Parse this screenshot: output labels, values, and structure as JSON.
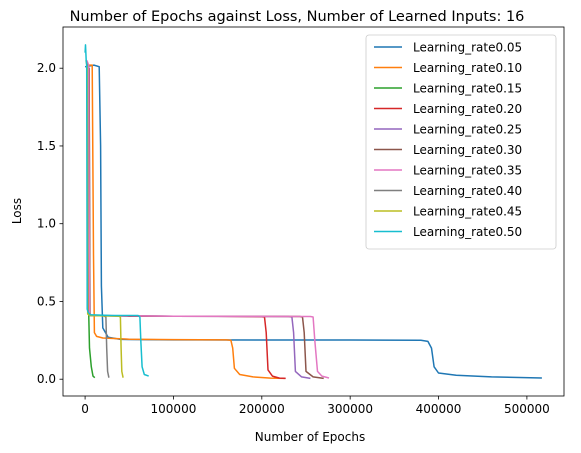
{
  "chart_data": {
    "type": "line",
    "title": "Number of Epochs against Loss, Number of Learned Inputs: 16",
    "xlabel": "Number of Epochs",
    "ylabel": "Loss",
    "xlim": [
      -25000,
      542000
    ],
    "ylim": [
      -0.108,
      2.265
    ],
    "xticks": [
      0,
      100000,
      200000,
      300000,
      400000,
      500000
    ],
    "xtick_labels": [
      "0",
      "100000",
      "200000",
      "300000",
      "400000",
      "500000"
    ],
    "yticks": [
      0.0,
      0.5,
      1.0,
      1.5,
      2.0
    ],
    "ytick_labels": [
      "0.0",
      "0.5",
      "1.0",
      "1.5",
      "2.0"
    ],
    "grid": false,
    "legend_position": "upper right",
    "series": [
      {
        "name": "Learning_rate0.05",
        "color": "#1f77b4",
        "points": [
          [
            0,
            2.01
          ],
          [
            10000,
            2.02
          ],
          [
            16000,
            2.01
          ],
          [
            17500,
            1.5
          ],
          [
            18500,
            0.6
          ],
          [
            20000,
            0.33
          ],
          [
            26000,
            0.27
          ],
          [
            40000,
            0.256
          ],
          [
            100000,
            0.253
          ],
          [
            200000,
            0.252
          ],
          [
            300000,
            0.252
          ],
          [
            380000,
            0.25
          ],
          [
            388000,
            0.243
          ],
          [
            392000,
            0.2
          ],
          [
            395000,
            0.08
          ],
          [
            400000,
            0.04
          ],
          [
            420000,
            0.025
          ],
          [
            460000,
            0.015
          ],
          [
            517000,
            0.008
          ]
        ]
      },
      {
        "name": "Learning_rate0.10",
        "color": "#ff7f0e",
        "points": [
          [
            3000,
            2.02
          ],
          [
            8000,
            2.02
          ],
          [
            9500,
            0.8
          ],
          [
            10500,
            0.3
          ],
          [
            13000,
            0.275
          ],
          [
            20000,
            0.265
          ],
          [
            50000,
            0.257
          ],
          [
            100000,
            0.255
          ],
          [
            160000,
            0.253
          ],
          [
            165000,
            0.25
          ],
          [
            167000,
            0.2
          ],
          [
            169000,
            0.07
          ],
          [
            175000,
            0.03
          ],
          [
            190000,
            0.015
          ],
          [
            210000,
            0.007
          ],
          [
            226000,
            0.005
          ]
        ]
      },
      {
        "name": "Learning_rate0.15",
        "color": "#2ca02c",
        "points": [
          [
            2000,
            2.02
          ],
          [
            3500,
            2.0
          ],
          [
            4200,
            0.4
          ],
          [
            5000,
            0.2
          ],
          [
            7000,
            0.08
          ],
          [
            9000,
            0.02
          ],
          [
            11000,
            0.01
          ]
        ]
      },
      {
        "name": "Learning_rate0.20",
        "color": "#d62728",
        "points": [
          [
            2500,
            2.02
          ],
          [
            4000,
            2.0
          ],
          [
            4800,
            0.42
          ],
          [
            6000,
            0.41
          ],
          [
            50000,
            0.405
          ],
          [
            100000,
            0.405
          ],
          [
            150000,
            0.405
          ],
          [
            200000,
            0.402
          ],
          [
            203000,
            0.4
          ],
          [
            205000,
            0.3
          ],
          [
            207000,
            0.06
          ],
          [
            212000,
            0.02
          ],
          [
            220000,
            0.007
          ],
          [
            227000,
            0.005
          ]
        ]
      },
      {
        "name": "Learning_rate0.25",
        "color": "#9467bd",
        "points": [
          [
            2500,
            2.0
          ],
          [
            4500,
            2.0
          ],
          [
            5500,
            0.42
          ],
          [
            7000,
            0.41
          ],
          [
            100000,
            0.405
          ],
          [
            230000,
            0.403
          ],
          [
            234000,
            0.4
          ],
          [
            236000,
            0.3
          ],
          [
            238000,
            0.05
          ],
          [
            245000,
            0.015
          ],
          [
            255000,
            0.005
          ]
        ]
      },
      {
        "name": "Learning_rate0.30",
        "color": "#8c564b",
        "points": [
          [
            2000,
            2.0
          ],
          [
            4500,
            2.0
          ],
          [
            5500,
            0.42
          ],
          [
            7000,
            0.41
          ],
          [
            100000,
            0.405
          ],
          [
            243000,
            0.403
          ],
          [
            246000,
            0.4
          ],
          [
            248000,
            0.3
          ],
          [
            250000,
            0.05
          ],
          [
            258000,
            0.015
          ],
          [
            270000,
            0.005
          ]
        ]
      },
      {
        "name": "Learning_rate0.35",
        "color": "#e377c2",
        "points": [
          [
            2000,
            2.05
          ],
          [
            4000,
            2.02
          ],
          [
            5000,
            0.42
          ],
          [
            7000,
            0.41
          ],
          [
            100000,
            0.405
          ],
          [
            255000,
            0.403
          ],
          [
            258000,
            0.4
          ],
          [
            260000,
            0.25
          ],
          [
            263000,
            0.05
          ],
          [
            268000,
            0.02
          ],
          [
            276000,
            0.008
          ]
        ]
      },
      {
        "name": "Learning_rate0.40",
        "color": "#7f7f7f",
        "points": [
          [
            1000,
            2.05
          ],
          [
            2500,
            2.02
          ],
          [
            3200,
            0.42
          ],
          [
            5000,
            0.41
          ],
          [
            20000,
            0.41
          ],
          [
            23500,
            0.4
          ],
          [
            24500,
            0.2
          ],
          [
            25500,
            0.05
          ],
          [
            27000,
            0.01
          ]
        ]
      },
      {
        "name": "Learning_rate0.45",
        "color": "#bcbd22",
        "points": [
          [
            1000,
            2.05
          ],
          [
            2500,
            2.0
          ],
          [
            3000,
            0.42
          ],
          [
            5000,
            0.41
          ],
          [
            38000,
            0.405
          ],
          [
            40000,
            0.4
          ],
          [
            40800,
            0.2
          ],
          [
            41500,
            0.05
          ],
          [
            43000,
            0.01
          ]
        ]
      },
      {
        "name": "Learning_rate0.50",
        "color": "#17becf",
        "points": [
          [
            0,
            2.1
          ],
          [
            500,
            2.15
          ],
          [
            1200,
            2.05
          ],
          [
            1800,
            2.02
          ],
          [
            2400,
            0.45
          ],
          [
            3500,
            0.43
          ],
          [
            6000,
            0.415
          ],
          [
            30000,
            0.41
          ],
          [
            60000,
            0.41
          ],
          [
            62000,
            0.4
          ],
          [
            63000,
            0.25
          ],
          [
            64500,
            0.08
          ],
          [
            67000,
            0.03
          ],
          [
            72000,
            0.02
          ]
        ]
      }
    ]
  }
}
